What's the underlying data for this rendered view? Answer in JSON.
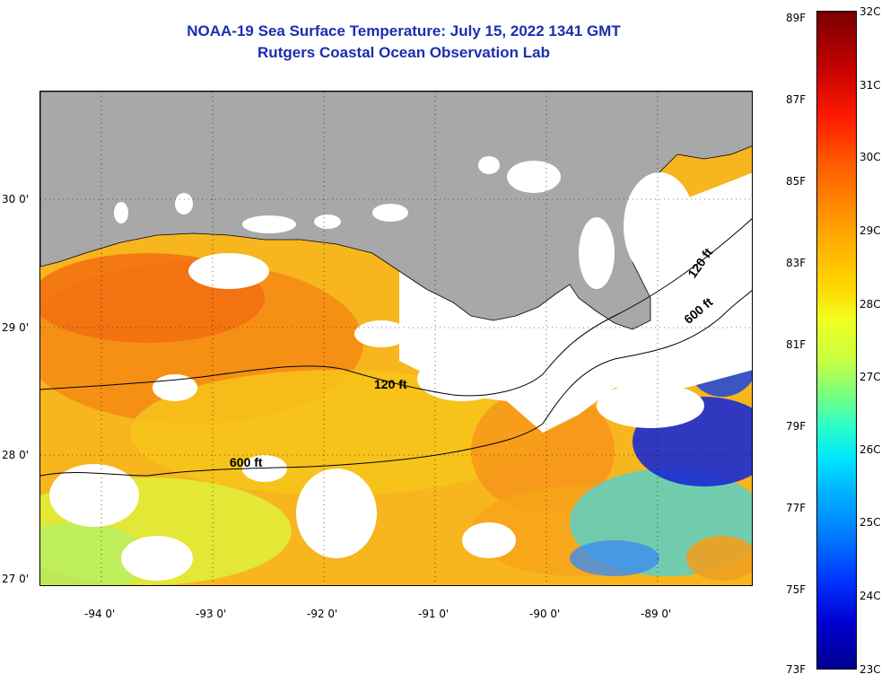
{
  "title": {
    "line1": "NOAA-19 Sea Surface Temperature:  July 15, 2022 1341 GMT",
    "line2": "Rutgers Coastal Ocean Observation Lab"
  },
  "map": {
    "lat_labels": [
      "30 0'",
      "29 0'",
      "28 0'",
      "27 0'"
    ],
    "lon_labels": [
      "-94 0'",
      "-93 0'",
      "-92 0'",
      "-91 0'",
      "-90 0'",
      "-89 0'"
    ],
    "contour_labels": {
      "c120_west": "120 ft",
      "c600_west": "600 ft",
      "c120_east": "120 ft",
      "c600_east": "600 ft"
    },
    "colors": {
      "land": "#a8a8a8",
      "no_data": "#ffffff",
      "contour": "#000000"
    }
  },
  "colorbar": {
    "fahrenheit": [
      "89F",
      "87F",
      "85F",
      "83F",
      "81F",
      "79F",
      "77F",
      "75F",
      "73F"
    ],
    "celsius": [
      "32C",
      "31C",
      "30C",
      "29C",
      "28C",
      "27C",
      "26C",
      "25C",
      "24C",
      "23C"
    ]
  }
}
